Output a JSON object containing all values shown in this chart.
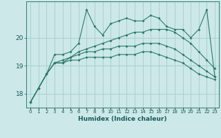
{
  "xlabel": "Humidex (Indice chaleur)",
  "bg_color": "#cce8e8",
  "grid_color": "#aad0d0",
  "line_color": "#2a7a6a",
  "line1": [
    17.7,
    18.2,
    18.7,
    19.4,
    19.4,
    19.5,
    19.8,
    21.0,
    20.4,
    20.1,
    20.5,
    20.6,
    20.7,
    20.6,
    20.6,
    20.8,
    20.7,
    20.4,
    20.3,
    20.3,
    20.0,
    20.3,
    21.0,
    18.6
  ],
  "line2": [
    17.7,
    18.2,
    18.7,
    19.1,
    19.1,
    19.3,
    19.5,
    19.6,
    19.7,
    19.8,
    19.9,
    20.0,
    20.1,
    20.2,
    20.2,
    20.3,
    20.3,
    20.3,
    20.2,
    20.0,
    19.8,
    19.5,
    19.2,
    18.9
  ],
  "line3": [
    17.7,
    18.2,
    18.7,
    19.1,
    19.2,
    19.3,
    19.4,
    19.5,
    19.5,
    19.6,
    19.6,
    19.7,
    19.7,
    19.7,
    19.8,
    19.8,
    19.8,
    19.7,
    19.6,
    19.4,
    19.2,
    19.0,
    18.8,
    18.6
  ],
  "line4": [
    17.7,
    18.2,
    18.7,
    19.1,
    19.1,
    19.2,
    19.2,
    19.3,
    19.3,
    19.3,
    19.3,
    19.4,
    19.4,
    19.4,
    19.5,
    19.5,
    19.4,
    19.3,
    19.2,
    19.1,
    18.9,
    18.7,
    18.6,
    18.5
  ],
  "x": [
    0,
    1,
    2,
    3,
    4,
    5,
    6,
    7,
    8,
    9,
    10,
    11,
    12,
    13,
    14,
    15,
    16,
    17,
    18,
    19,
    20,
    21,
    22,
    23
  ],
  "ylim": [
    17.5,
    21.3
  ],
  "yticks": [
    18,
    19,
    20
  ],
  "xtick_labels": [
    "0",
    "1",
    "2",
    "3",
    "4",
    "5",
    "6",
    "7",
    "8",
    "9",
    "10",
    "11",
    "12",
    "13",
    "14",
    "15",
    "16",
    "17",
    "18",
    "19",
    "20",
    "21",
    "22",
    "23"
  ]
}
